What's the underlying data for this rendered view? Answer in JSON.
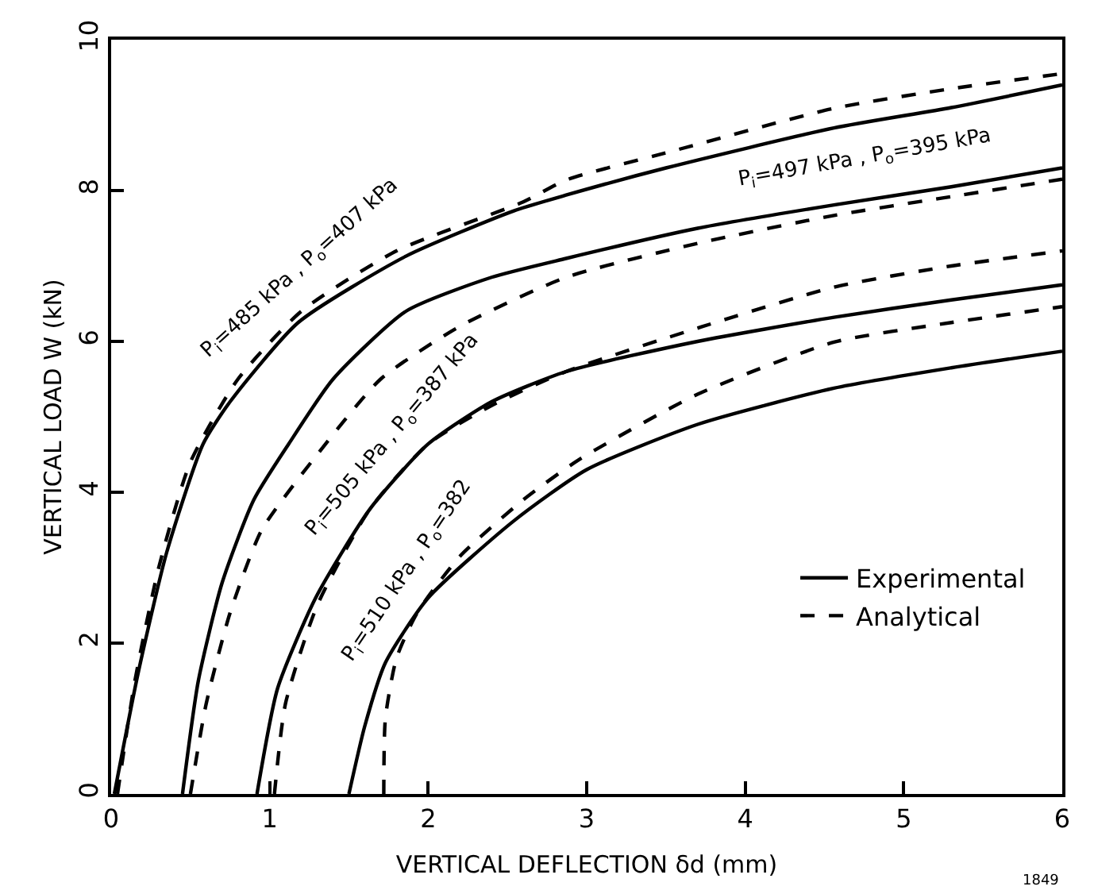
{
  "chart_data": {
    "type": "line",
    "xlabel": "VERTICAL DEFLECTION δd (mm)",
    "ylabel": "VERTICAL LOAD W (kN)",
    "xlim": [
      0,
      6
    ],
    "ylim": [
      0,
      10
    ],
    "xticks": [
      0,
      1,
      2,
      3,
      4,
      5,
      6
    ],
    "yticks": [
      0,
      2,
      4,
      6,
      8,
      10
    ],
    "grid": false,
    "legend": "bottom right",
    "marker": "none",
    "series": [
      {
        "name": "Experimental",
        "color": "#000000",
        "line_style": "solid",
        "x": [
          0.02,
          0.17,
          0.35,
          0.58,
          0.75,
          1.18,
          1.86,
          2.54,
          2.87,
          3.5,
          4.56,
          5.3,
          6
        ],
        "values": [
          0,
          1.6,
          3.2,
          4.64,
          5.2,
          6.25,
          7.13,
          7.73,
          7.94,
          8.3,
          8.83,
          9.1,
          9.4
        ]
      },
      {
        "name": "Analytical",
        "color": "#000000",
        "line_style": "dashed",
        "x": [
          0.04,
          0.15,
          0.3,
          0.5,
          0.8,
          1.2,
          1.8,
          2.6,
          2.87,
          3.5,
          4.56,
          5.3,
          6
        ],
        "values": [
          0,
          1.5,
          3,
          4.4,
          5.5,
          6.4,
          7.2,
          7.85,
          8.14,
          8.5,
          9.09,
          9.35,
          9.55
        ]
      },
      {
        "color": "#000000",
        "line_style": "solid",
        "x": [
          0.45,
          0.55,
          0.7,
          0.9,
          1.12,
          1.4,
          1.86,
          2.4,
          2.87,
          3.7,
          4.56,
          5.3,
          6
        ],
        "values": [
          0,
          1.5,
          2.8,
          3.9,
          4.64,
          5.5,
          6.4,
          6.85,
          7.1,
          7.5,
          7.81,
          8.05,
          8.3
        ]
      },
      {
        "color": "#000000",
        "line_style": "dashed",
        "x": [
          0.5,
          0.6,
          0.75,
          0.95,
          1.3,
          1.7,
          2.2,
          2.87,
          3.7,
          4.56,
          5.3,
          6
        ],
        "values": [
          0,
          1.2,
          2.4,
          3.5,
          4.5,
          5.5,
          6.2,
          6.85,
          7.3,
          7.67,
          7.92,
          8.15
        ]
      },
      {
        "color": "#000000",
        "line_style": "solid",
        "x": [
          0.92,
          1.05,
          1.29,
          1.63,
          2.0,
          2.4,
          2.87,
          3.7,
          4.56,
          5.3,
          6
        ],
        "values": [
          0,
          1.4,
          2.6,
          3.77,
          4.64,
          5.2,
          5.6,
          6.0,
          6.32,
          6.55,
          6.75
        ]
      },
      {
        "color": "#000000",
        "line_style": "dashed",
        "x": [
          1.03,
          1.1,
          1.3,
          1.63,
          2.0,
          2.4,
          2.87,
          3.72,
          4.56,
          5.3,
          6
        ],
        "values": [
          0,
          1.2,
          2.5,
          3.77,
          4.64,
          5.15,
          5.6,
          6.19,
          6.72,
          7.0,
          7.2
        ]
      },
      {
        "color": "#000000",
        "line_style": "solid",
        "x": [
          1.5,
          1.6,
          1.73,
          2.0,
          2.54,
          3.0,
          3.7,
          4.56,
          5.3,
          6
        ],
        "values": [
          0,
          0.9,
          1.74,
          2.6,
          3.62,
          4.3,
          4.9,
          5.38,
          5.65,
          5.87
        ]
      },
      {
        "color": "#000000",
        "line_style": "dashed",
        "x": [
          1.72,
          1.73,
          1.8,
          1.93,
          2.2,
          2.6,
          2.95,
          3.7,
          4.56,
          5.3,
          6
        ],
        "values": [
          0,
          1.0,
          1.8,
          2.4,
          3.15,
          3.9,
          4.43,
          5.3,
          5.99,
          6.25,
          6.46
        ]
      }
    ],
    "annotations": [
      "P$_{i}$=485 kPa , P$_{o}$=407 kPa",
      "P$_{i}$=497 kPa , P$_{o}$=395 kPa",
      "P$_{i}$=505 kPa , P$_{o}$=387 kPa",
      "P$_{i}$=510 kPa , P$_{o}$=382",
      "1849"
    ]
  }
}
